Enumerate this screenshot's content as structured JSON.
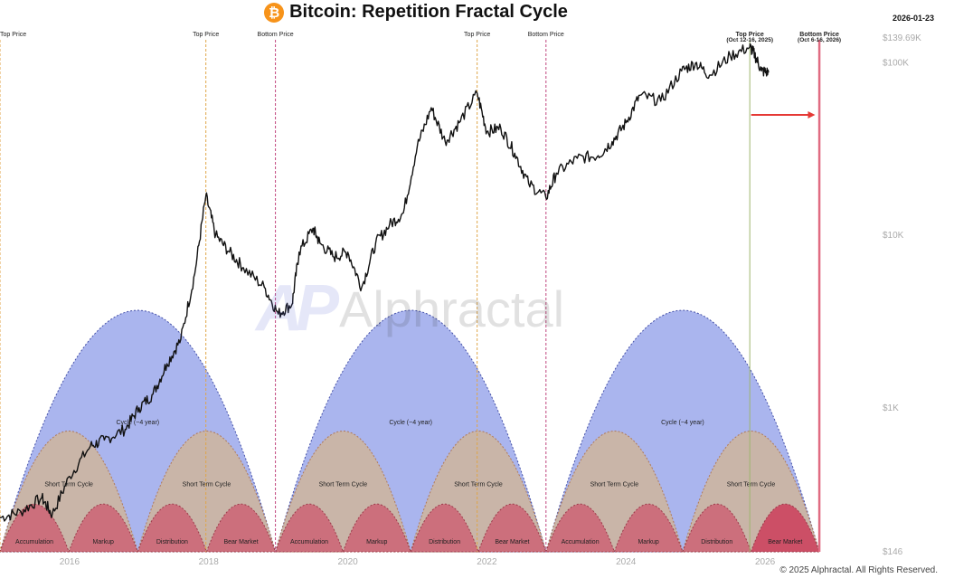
{
  "header": {
    "title": "Bitcoin: Repetition Fractal Cycle",
    "logo_glyph": "₿",
    "date": "2026-01-23"
  },
  "footer": {
    "copyright": "© 2025 Alphractal. All Rights Reserved."
  },
  "watermark": {
    "logo": "AP",
    "text": "Alphractal"
  },
  "chart_data": {
    "type": "line",
    "scale": "log",
    "x_ticks": [
      "2016",
      "2018",
      "2020",
      "2022",
      "2024",
      "2026"
    ],
    "y_ticks": [
      "$139.69K",
      "$100K",
      "$10K",
      "$1K",
      "$146"
    ],
    "y_tick_values": [
      139690,
      100000,
      10000,
      1000,
      146
    ],
    "ylim": [
      146,
      139690
    ],
    "xlim": [
      2015.0,
      2027.0
    ],
    "series": [
      {
        "x": [
          2015.0,
          2015.3,
          2015.6,
          2015.75,
          2016.0,
          2016.3,
          2016.5,
          2016.8,
          2017.0,
          2017.2,
          2017.4,
          2017.6,
          2017.8,
          2017.96,
          2018.1,
          2018.3,
          2018.5,
          2018.8,
          2019.0,
          2019.2,
          2019.3,
          2019.5,
          2019.6,
          2019.8,
          2020.0,
          2020.2,
          2020.4,
          2020.6,
          2020.8,
          2021.0,
          2021.2,
          2021.4,
          2021.6,
          2021.86,
          2022.0,
          2022.2,
          2022.4,
          2022.6,
          2022.85,
          2023.0,
          2023.3,
          2023.6,
          2023.8,
          2024.0,
          2024.2,
          2024.5,
          2024.8,
          2025.0,
          2025.2,
          2025.5,
          2025.78,
          2025.85,
          2025.95,
          2026.05
        ],
        "y": [
          230,
          250,
          300,
          240,
          400,
          600,
          650,
          750,
          1000,
          1200,
          1800,
          2500,
          6000,
          17000,
          10000,
          8000,
          6500,
          5000,
          3500,
          4000,
          8000,
          11000,
          9000,
          7500,
          8000,
          5000,
          9000,
          11500,
          13500,
          33000,
          55000,
          35000,
          45000,
          67000,
          40000,
          42000,
          30000,
          20000,
          16500,
          23000,
          28000,
          29000,
          35000,
          45000,
          65000,
          60000,
          90000,
          100000,
          85000,
          110000,
          124000,
          112000,
          90000,
          88000
        ]
      }
    ],
    "markers": [
      {
        "label": "Top Price",
        "x": 2015.0,
        "kind": "top"
      },
      {
        "label": "Top Price",
        "x": 2017.96,
        "kind": "top"
      },
      {
        "label": "Bottom Price",
        "x": 2018.96,
        "kind": "bottom"
      },
      {
        "label": "Top Price",
        "x": 2021.86,
        "kind": "top"
      },
      {
        "label": "Bottom Price",
        "x": 2022.85,
        "kind": "bottom"
      },
      {
        "label": "Top Price",
        "label2": "(Oct 12-16, 2025)",
        "x": 2025.78,
        "kind": "top-green"
      },
      {
        "label": "Bottom Price",
        "label2": "(Oct 6-16, 2026)",
        "x": 2026.78,
        "kind": "bottom-red"
      }
    ],
    "cycles": [
      {
        "label": "Cycle (~4 year)",
        "x0": 2015.0,
        "x1": 2018.96
      },
      {
        "label": "Cycle (~4 year)",
        "x0": 2018.96,
        "x1": 2022.85
      },
      {
        "label": "Cycle (~4 year)",
        "x0": 2022.85,
        "x1": 2026.78
      }
    ],
    "short_term_label": "Short Term Cycle",
    "phases": [
      "Accumulation",
      "Markup",
      "Distribution",
      "Bear Market"
    ],
    "colors": {
      "price": "#111111",
      "cycle": "#aab5ee",
      "short_term": "#c9b5a8",
      "phase": "#cc6f7c",
      "phase_highlight": "#cc4f66",
      "top_line": "#e0a64a",
      "bottom_line": "#c1477e",
      "top_green": "#9cb56d",
      "bottom_red": "#e06c82",
      "arrow": "#e53935"
    }
  }
}
